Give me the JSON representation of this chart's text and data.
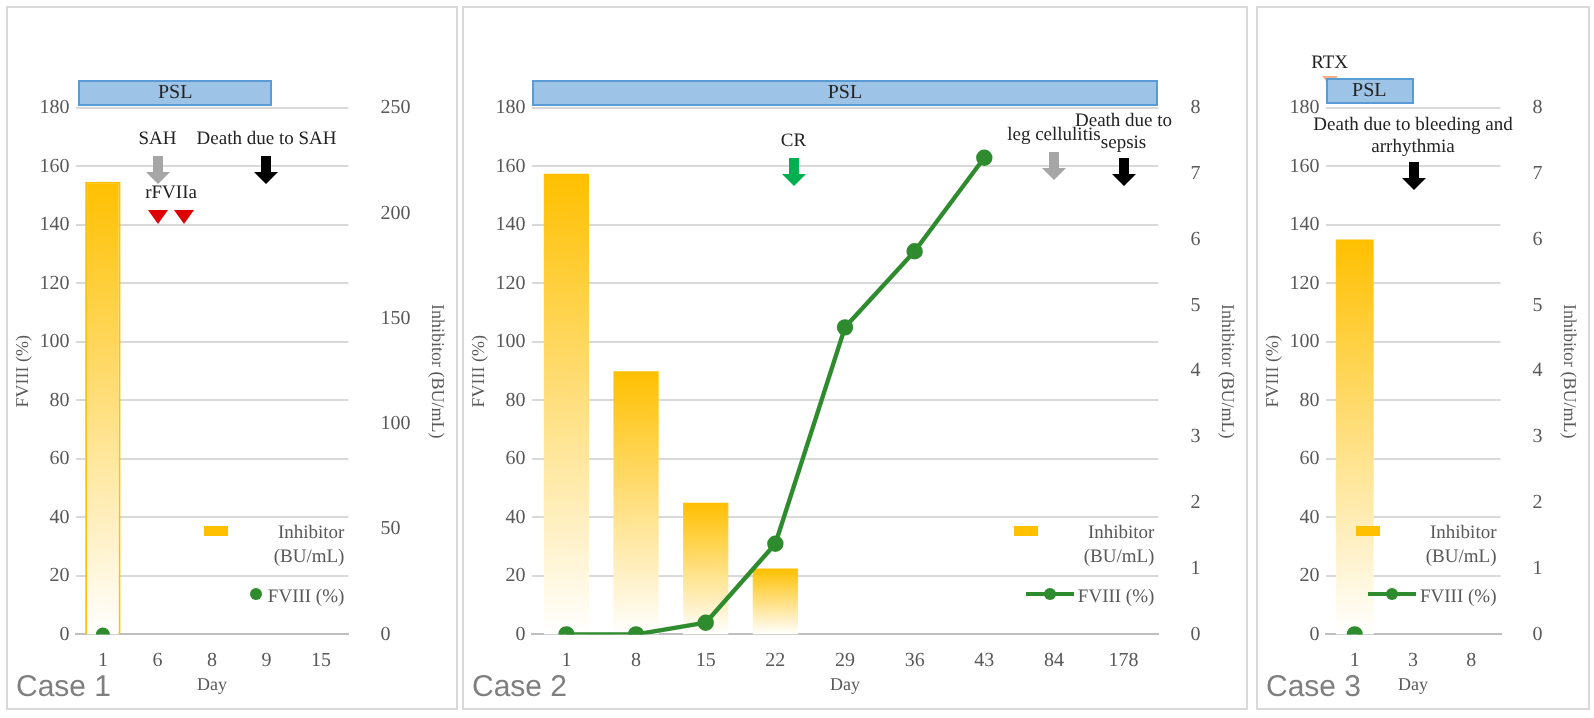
{
  "chart_data": [
    {
      "type": "bar",
      "title": "Case 1",
      "xlabel": "Day",
      "ylabel": "FVIII (%)",
      "y2label": "Inhibitor (BU/mL)",
      "categories": [
        "1",
        "6",
        "8",
        "9",
        "15"
      ],
      "series": [
        {
          "name": "Inhibitor (BU/mL)",
          "type": "bar",
          "axis": "y2",
          "color": "#ffc000",
          "values": [
            215,
            null,
            null,
            null,
            null
          ]
        },
        {
          "name": "FVIII (%)",
          "type": "scatter",
          "color": "#2e8b2e",
          "values": [
            0,
            null,
            null,
            null,
            null
          ]
        }
      ],
      "ylim": [
        0,
        180
      ],
      "yticks": [
        0,
        20,
        40,
        60,
        80,
        100,
        120,
        140,
        160,
        180
      ],
      "y2lim": [
        0,
        250
      ],
      "y2ticks": [
        0,
        50,
        100,
        150,
        200,
        250
      ],
      "grid": "y",
      "legend": "bottom right",
      "marker": "circle",
      "annotations": [
        "PSL",
        "SAH",
        "rFVIIa",
        "Death due to SAH"
      ]
    },
    {
      "type": "bar",
      "title": "Case 2",
      "xlabel": "Day",
      "ylabel": "FVIII (%)",
      "y2label": "Inhibitor (BU/mL)",
      "categories": [
        "1",
        "8",
        "15",
        "22",
        "29",
        "36",
        "43",
        "84",
        "178"
      ],
      "series": [
        {
          "name": "Inhibitor (BU/mL)",
          "type": "bar",
          "axis": "y2",
          "color": "#ffc000",
          "values": [
            7.0,
            4.0,
            2.0,
            1.0,
            null,
            null,
            null,
            null,
            null
          ]
        },
        {
          "name": "FVIII (%)",
          "type": "line",
          "color": "#2e8b2e",
          "values": [
            0,
            0,
            4,
            31,
            105,
            131,
            163,
            null,
            null
          ]
        }
      ],
      "ylim": [
        0,
        180
      ],
      "yticks": [
        0,
        20,
        40,
        60,
        80,
        100,
        120,
        140,
        160,
        180
      ],
      "y2lim": [
        0,
        8
      ],
      "y2ticks": [
        0,
        1,
        2,
        3,
        4,
        5,
        6,
        7,
        8
      ],
      "grid": "y",
      "legend": "bottom right",
      "marker": "circle",
      "annotations": [
        "PSL",
        "CR",
        "leg cellulitis",
        "Death due to sepsis"
      ]
    },
    {
      "type": "bar",
      "title": "Case 3",
      "xlabel": "Day",
      "ylabel": "FVIII (%)",
      "y2label": "Inhibitor (BU/mL)",
      "categories": [
        "1",
        "3",
        "8"
      ],
      "series": [
        {
          "name": "Inhibitor (BU/mL)",
          "type": "bar",
          "axis": "y2",
          "color": "#ffc000",
          "values": [
            6.0,
            null,
            null
          ]
        },
        {
          "name": "FVIII (%)",
          "type": "line",
          "color": "#2e8b2e",
          "values": [
            0,
            null,
            null
          ]
        }
      ],
      "ylim": [
        0,
        180
      ],
      "yticks": [
        0,
        20,
        40,
        60,
        80,
        100,
        120,
        140,
        160,
        180
      ],
      "y2lim": [
        0,
        8
      ],
      "y2ticks": [
        0,
        1,
        2,
        3,
        4,
        5,
        6,
        7,
        8
      ],
      "grid": "y",
      "legend": "bottom right",
      "marker": "circle",
      "annotations": [
        "RTX",
        "PSL",
        "Death due to bleeding and arrhythmia"
      ]
    }
  ]
}
